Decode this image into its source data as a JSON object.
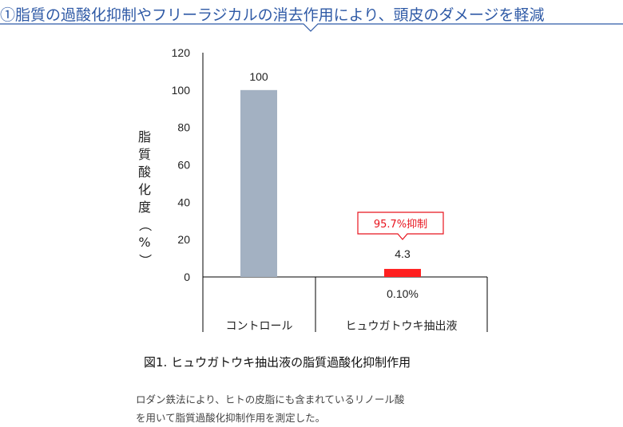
{
  "header": {
    "title": "①脂質の過酸化抑制やフリーラジカルの消去作用により、頭皮のダメージを軽減"
  },
  "chart_data": {
    "type": "bar",
    "categories": [
      "コントロール",
      "ヒュウガトウキ抽出液"
    ],
    "values": [
      100,
      4.3
    ],
    "value_labels": [
      "100",
      "4.3"
    ],
    "bar_colors": [
      "#a3b1c2",
      "#ff1f1f"
    ],
    "ylim": [
      0,
      120
    ],
    "yticks": [
      0,
      20,
      40,
      60,
      80,
      100,
      120
    ],
    "ylabel": "脂質酸化度（%）",
    "concentration_label": "0.10%",
    "annotation": "95.7%抑制",
    "annotation_color": "#e8141e",
    "grid": false
  },
  "caption": "図1. ヒュウガトウキ抽出液の脂質過酸化抑制作用",
  "note": {
    "line1": "ロダン鉄法により、ヒトの皮脂にも含まれているリノール酸",
    "line2": "を用いて脂質過酸化抑制作用を測定した。"
  }
}
